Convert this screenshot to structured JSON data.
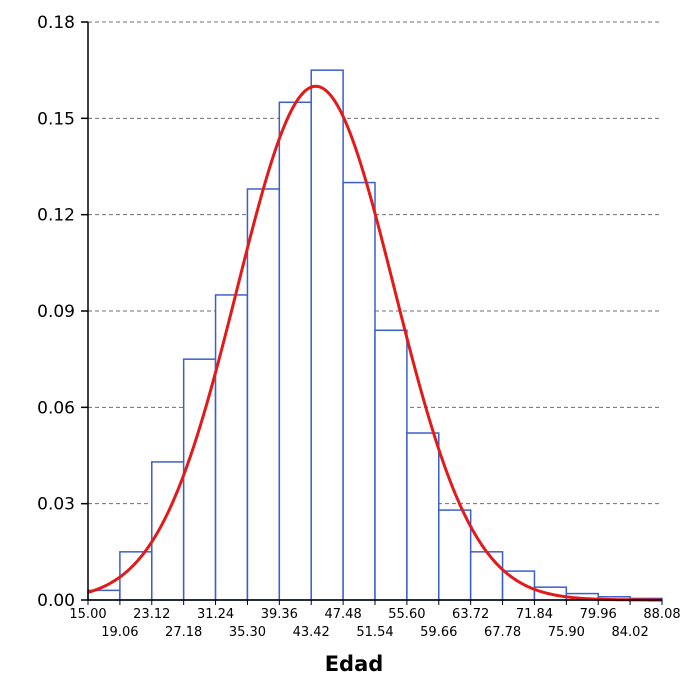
{
  "chart_data": {
    "type": "bar",
    "subtype": "histogram-with-normal-curve",
    "title": "",
    "xlabel": "Edad",
    "ylabel": "",
    "ylim": [
      0,
      0.18
    ],
    "y_ticks": [
      "0.00",
      "0.03",
      "0.06",
      "0.09",
      "0.12",
      "0.15",
      "0.18"
    ],
    "y_tick_values": [
      0,
      0.03,
      0.06,
      0.09,
      0.12,
      0.15,
      0.18
    ],
    "x_ticks_row1": [
      "15.00",
      "23.12",
      "31.24",
      "39.36",
      "47.48",
      "55.60",
      "63.72",
      "71.84",
      "79.96",
      "88.08"
    ],
    "x_ticks_row1_values": [
      15.0,
      23.12,
      31.24,
      39.36,
      47.48,
      55.6,
      63.72,
      71.84,
      79.96,
      88.08
    ],
    "x_ticks_row2": [
      "19.06",
      "27.18",
      "35.30",
      "43.42",
      "51.54",
      "59.66",
      "67.78",
      "75.90",
      "84.02"
    ],
    "x_ticks_row2_values": [
      19.06,
      27.18,
      35.3,
      43.42,
      51.54,
      59.66,
      67.78,
      75.9,
      84.02
    ],
    "xlim": [
      15.0,
      88.08
    ],
    "bin_edges": [
      15.0,
      19.06,
      23.12,
      27.18,
      31.24,
      35.3,
      39.36,
      43.42,
      47.48,
      51.54,
      55.6,
      59.66,
      63.72,
      67.78,
      71.84,
      75.9,
      79.96,
      84.02,
      88.08
    ],
    "values": [
      0.003,
      0.015,
      0.043,
      0.075,
      0.095,
      0.128,
      0.155,
      0.165,
      0.13,
      0.084,
      0.052,
      0.028,
      0.015,
      0.009,
      0.004,
      0.002,
      0.001,
      0.0005
    ],
    "normal_curve": {
      "mean": 44.0,
      "sd": 10.0,
      "peak": 0.16,
      "color": "#e31a1a"
    },
    "grid": "horizontal-dashed",
    "bar_edge_color": "#3a5fcd",
    "bar_fill_color": "#ffffff",
    "legend": "none"
  }
}
